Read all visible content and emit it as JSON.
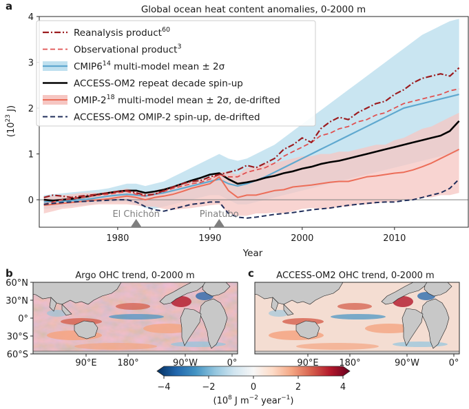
{
  "chart_data": [
    {
      "type": "line",
      "panel_label": "a",
      "title": "Global ocean heat content anomalies, 0-2000 m",
      "xlabel": "Year",
      "ylabel": "(10²³ J)",
      "ylabel_base": "(10",
      "ylabel_exp": "23",
      "ylabel_tail": " J)",
      "xlim": [
        1971.5,
        2018
      ],
      "ylim": [
        -0.6,
        4
      ],
      "xticks": [
        1980,
        1990,
        2000,
        2010
      ],
      "yticks": [
        0,
        1,
        2,
        3,
        4
      ],
      "zero_line": 0,
      "colors": {
        "reanalysis": "#9b1b1e",
        "observational": "#e05050",
        "cmip6_line": "#5fa8cf",
        "cmip6_band": "#bfe0ef",
        "access_spinup": "#000000",
        "omip2_line": "#ec6d58",
        "omip2_band": "#f6c6c2",
        "omip2_spinup": "#1f2d5a",
        "annotation": "#7f7f7f"
      },
      "x": [
        1972,
        1973,
        1974,
        1975,
        1976,
        1977,
        1978,
        1979,
        1980,
        1981,
        1982,
        1983,
        1984,
        1985,
        1986,
        1987,
        1988,
        1989,
        1990,
        1991,
        1992,
        1993,
        1994,
        1995,
        1996,
        1997,
        1998,
        1999,
        2000,
        2001,
        2002,
        2003,
        2004,
        2005,
        2006,
        2007,
        2008,
        2009,
        2010,
        2011,
        2012,
        2013,
        2014,
        2015,
        2016,
        2017
      ],
      "series": [
        {
          "key": "cmip6_band",
          "name": "CMIP6 ±2σ range",
          "type": "band",
          "lower": [
            -0.2,
            -0.18,
            -0.16,
            -0.14,
            -0.12,
            -0.1,
            -0.08,
            -0.06,
            -0.05,
            -0.05,
            -0.1,
            -0.18,
            -0.2,
            -0.15,
            -0.1,
            -0.05,
            0.0,
            0.05,
            0.1,
            0.1,
            0.0,
            -0.1,
            -0.1,
            -0.05,
            0.0,
            0.05,
            0.1,
            0.15,
            0.2,
            0.25,
            0.3,
            0.35,
            0.4,
            0.45,
            0.5,
            0.55,
            0.6,
            0.65,
            0.7,
            0.75,
            0.8,
            0.85,
            0.9,
            0.95,
            1.0,
            1.05
          ],
          "upper": [
            0.1,
            0.12,
            0.14,
            0.16,
            0.18,
            0.2,
            0.22,
            0.25,
            0.3,
            0.35,
            0.35,
            0.3,
            0.35,
            0.4,
            0.5,
            0.6,
            0.7,
            0.8,
            0.9,
            1.0,
            0.9,
            0.85,
            0.9,
            1.0,
            1.1,
            1.2,
            1.35,
            1.5,
            1.65,
            1.8,
            1.95,
            2.1,
            2.25,
            2.4,
            2.55,
            2.7,
            2.85,
            3.0,
            3.15,
            3.3,
            3.45,
            3.6,
            3.7,
            3.8,
            3.9,
            3.95
          ]
        },
        {
          "key": "omip2_band",
          "name": "OMIP-2 ±2σ range",
          "type": "band",
          "lower": [
            -0.3,
            -0.25,
            -0.2,
            -0.18,
            -0.15,
            -0.12,
            -0.1,
            -0.1,
            -0.1,
            -0.1,
            -0.12,
            -0.15,
            -0.15,
            -0.2,
            -0.22,
            -0.2,
            -0.18,
            -0.15,
            -0.12,
            -0.1,
            -0.3,
            -0.35,
            -0.35,
            -0.3,
            -0.3,
            -0.28,
            -0.3,
            -0.25,
            -0.2,
            -0.18,
            -0.2,
            -0.2,
            -0.15,
            -0.15,
            -0.1,
            -0.1,
            -0.08,
            -0.05,
            -0.05,
            0.0,
            0.0,
            0.05,
            0.05,
            0.1,
            0.1,
            0.15
          ],
          "upper": [
            0.05,
            0.08,
            0.1,
            0.12,
            0.15,
            0.15,
            0.15,
            0.18,
            0.2,
            0.25,
            0.2,
            0.15,
            0.2,
            0.25,
            0.3,
            0.35,
            0.4,
            0.45,
            0.5,
            0.6,
            0.6,
            0.55,
            0.7,
            0.7,
            0.8,
            0.8,
            0.85,
            0.9,
            0.95,
            0.95,
            1.0,
            1.0,
            1.05,
            1.05,
            1.1,
            1.15,
            1.2,
            1.2,
            1.3,
            1.35,
            1.45,
            1.55,
            1.6,
            1.7,
            1.8,
            1.9
          ]
        },
        {
          "key": "cmip6_line",
          "name": "CMIP6 multi-model mean",
          "type": "line",
          "style": "solid",
          "values": [
            -0.05,
            -0.04,
            -0.03,
            -0.02,
            0.0,
            0.02,
            0.05,
            0.08,
            0.1,
            0.12,
            0.1,
            0.08,
            0.12,
            0.15,
            0.2,
            0.25,
            0.3,
            0.35,
            0.4,
            0.45,
            0.35,
            0.3,
            0.35,
            0.42,
            0.5,
            0.6,
            0.7,
            0.8,
            0.9,
            1.0,
            1.1,
            1.2,
            1.3,
            1.4,
            1.5,
            1.6,
            1.7,
            1.8,
            1.9,
            2.0,
            2.05,
            2.1,
            2.15,
            2.2,
            2.25,
            2.3
          ]
        },
        {
          "key": "omip2_line",
          "name": "OMIP-2 multi-model mean",
          "type": "line",
          "style": "solid",
          "values": [
            -0.12,
            -0.1,
            -0.08,
            -0.06,
            -0.04,
            -0.02,
            0.0,
            0.02,
            0.05,
            0.08,
            0.05,
            0.0,
            0.05,
            0.08,
            0.12,
            0.18,
            0.25,
            0.3,
            0.35,
            0.5,
            0.2,
            0.05,
            0.1,
            0.1,
            0.15,
            0.2,
            0.22,
            0.28,
            0.3,
            0.32,
            0.35,
            0.38,
            0.4,
            0.4,
            0.45,
            0.5,
            0.52,
            0.55,
            0.58,
            0.6,
            0.65,
            0.72,
            0.8,
            0.9,
            1.0,
            1.1
          ]
        },
        {
          "key": "access_spinup",
          "name": "ACCESS-OM2 repeat decade spin-up",
          "type": "line",
          "style": "solid",
          "values": [
            0.0,
            -0.02,
            0.0,
            0.02,
            0.05,
            0.08,
            0.12,
            0.15,
            0.18,
            0.2,
            0.2,
            0.15,
            0.18,
            0.22,
            0.28,
            0.35,
            0.42,
            0.48,
            0.55,
            0.58,
            0.45,
            0.35,
            0.38,
            0.42,
            0.48,
            0.52,
            0.58,
            0.62,
            0.68,
            0.72,
            0.78,
            0.82,
            0.85,
            0.9,
            0.95,
            1.0,
            1.05,
            1.1,
            1.15,
            1.2,
            1.25,
            1.3,
            1.35,
            1.4,
            1.5,
            1.72
          ]
        },
        {
          "key": "observational",
          "name": "Observational product",
          "type": "line",
          "style": "dashed",
          "values": [
            -0.1,
            -0.05,
            0.0,
            0.02,
            0.05,
            0.08,
            0.1,
            0.12,
            0.15,
            0.18,
            0.12,
            0.08,
            0.12,
            0.18,
            0.25,
            0.3,
            0.35,
            0.38,
            0.45,
            0.55,
            0.5,
            0.5,
            0.6,
            0.65,
            0.7,
            0.8,
            0.95,
            1.05,
            1.15,
            1.25,
            1.4,
            1.45,
            1.55,
            1.6,
            1.7,
            1.75,
            1.85,
            1.9,
            2.0,
            2.1,
            2.15,
            2.2,
            2.25,
            2.3,
            2.38,
            2.42
          ]
        },
        {
          "key": "reanalysis",
          "name": "Reanalysis product",
          "type": "line",
          "style": "dashdot",
          "values": [
            0.05,
            0.1,
            0.08,
            0.05,
            0.08,
            0.1,
            0.12,
            0.15,
            0.18,
            0.2,
            0.15,
            0.1,
            0.12,
            0.2,
            0.28,
            0.35,
            0.4,
            0.42,
            0.5,
            0.55,
            0.6,
            0.65,
            0.75,
            0.7,
            0.8,
            0.9,
            1.1,
            1.2,
            1.35,
            1.25,
            1.55,
            1.7,
            1.8,
            1.75,
            1.9,
            2.0,
            2.1,
            2.15,
            2.3,
            2.4,
            2.55,
            2.65,
            2.7,
            2.75,
            2.7,
            2.88
          ]
        },
        {
          "key": "omip2_spinup",
          "name": "ACCESS-OM2 OMIP-2 spin-up, de-drifted",
          "type": "line",
          "style": "dashed",
          "values": [
            -0.1,
            -0.08,
            -0.06,
            -0.05,
            -0.04,
            -0.03,
            -0.02,
            -0.01,
            0.0,
            0.0,
            -0.05,
            -0.15,
            -0.22,
            -0.25,
            -0.2,
            -0.15,
            -0.1,
            -0.08,
            -0.05,
            -0.05,
            -0.3,
            -0.38,
            -0.4,
            -0.38,
            -0.35,
            -0.32,
            -0.3,
            -0.28,
            -0.25,
            -0.22,
            -0.2,
            -0.18,
            -0.15,
            -0.12,
            -0.1,
            -0.08,
            -0.06,
            -0.05,
            -0.05,
            -0.02,
            0.0,
            0.05,
            0.1,
            0.15,
            0.25,
            0.45
          ]
        }
      ],
      "annotations": [
        {
          "label": "El Chichón",
          "x": 1982
        },
        {
          "label": "Pinatubo",
          "x": 1991
        }
      ],
      "legend": {
        "placement": "top-left",
        "entries": [
          {
            "key": "reanalysis",
            "base": "Reanalysis product",
            "sup": "60",
            "tail": ""
          },
          {
            "key": "observational",
            "base": "Observational product",
            "sup": "3",
            "tail": ""
          },
          {
            "key": "cmip6_line",
            "base": "CMIP6",
            "sup": "14",
            "tail": " multi-model mean ± 2σ"
          },
          {
            "key": "access_spinup",
            "base": "ACCESS-OM2 repeat decade spin-up",
            "sup": "",
            "tail": ""
          },
          {
            "key": "omip2_line",
            "base": "OMIP-2",
            "sup": "18",
            "tail": " multi-model mean ± 2σ, de-drifted"
          },
          {
            "key": "omip2_spinup",
            "base": "ACCESS-OM2 OMIP-2 spin-up, de-drifted",
            "sup": "",
            "tail": ""
          }
        ]
      }
    },
    {
      "type": "heatmap",
      "panel_label": "b",
      "title": "Argo OHC trend, 0-2000 m",
      "xticklabels": [
        "90°E",
        "180°",
        "90°W",
        "0°"
      ],
      "yticklabels": [
        "60°N",
        "30°N",
        "0°",
        "30°S",
        "60°S"
      ]
    },
    {
      "type": "heatmap",
      "panel_label": "c",
      "title": "ACCESS-OM2 OHC trend, 0-2000 m",
      "xticklabels": [
        "90°E",
        "180°",
        "90°W",
        "0°"
      ]
    }
  ],
  "colorbar": {
    "ticks": [
      "−4",
      "−2",
      "0",
      "2",
      "4"
    ],
    "tick_values": [
      -4,
      -2,
      0,
      2,
      4
    ],
    "range": [
      -4,
      4
    ],
    "label": "(10⁸ J m⁻² year⁻¹)",
    "label_base": "(10",
    "label_exp1": "8",
    "label_mid": " J m",
    "label_exp2": "−2",
    "label_mid2": " year",
    "label_exp3": "−1",
    "label_tail": ")",
    "colors": [
      "#053061",
      "#2166ac",
      "#4393c3",
      "#92c5de",
      "#d1e5f0",
      "#f7f7f7",
      "#fddbc7",
      "#f4a582",
      "#d6604d",
      "#b2182b",
      "#67001f"
    ]
  }
}
